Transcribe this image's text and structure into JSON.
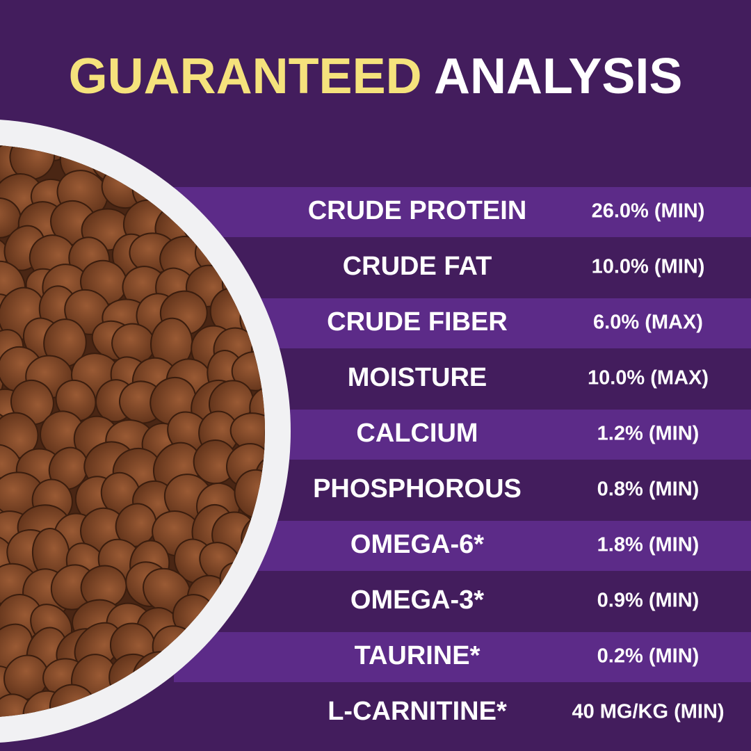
{
  "header": {
    "title_highlight": "GUARANTEED",
    "title_rest": "ANALYSIS"
  },
  "table": {
    "rows": [
      [
        "CRUDE PROTEIN",
        "26.0% (MIN)"
      ],
      [
        "CRUDE FAT",
        "10.0% (MIN)"
      ],
      [
        "CRUDE FIBER",
        "6.0% (MAX)"
      ],
      [
        "MOISTURE",
        "10.0% (MAX)"
      ],
      [
        "CALCIUM",
        "1.2% (MIN)"
      ],
      [
        "PHOSPHOROUS",
        "0.8% (MIN)"
      ],
      [
        "OMEGA-6*",
        "1.8% (MIN)"
      ],
      [
        "OMEGA-3*",
        "0.9% (MIN)"
      ],
      [
        "TAURINE*",
        "0.2% (MIN)"
      ],
      [
        "L-CARNITINE*",
        "40 MG/KG (MIN)"
      ]
    ]
  }
}
